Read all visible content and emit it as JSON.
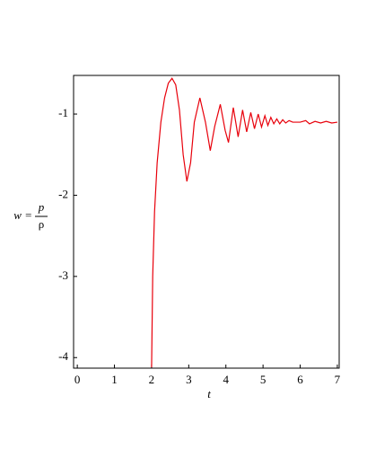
{
  "chart_data": {
    "type": "line",
    "x_label": "t",
    "y_label": {
      "lhs": "w =",
      "numerator": "p",
      "denominator": "ρ"
    },
    "x": [
      2.0,
      2.03,
      2.08,
      2.15,
      2.25,
      2.35,
      2.45,
      2.55,
      2.65,
      2.75,
      2.85,
      2.95,
      3.05,
      3.15,
      3.3,
      3.45,
      3.58,
      3.7,
      3.85,
      3.98,
      4.07,
      4.2,
      4.33,
      4.45,
      4.56,
      4.67,
      4.77,
      4.87,
      4.96,
      5.05,
      5.13,
      5.21,
      5.29,
      5.37,
      5.45,
      5.53,
      5.61,
      5.7,
      5.8,
      6.0,
      6.15,
      6.25,
      6.4,
      6.55,
      6.7,
      6.85,
      7.0
    ],
    "series": [
      {
        "color": "#e8000b",
        "values": [
          -4.12,
          -3.0,
          -2.2,
          -1.6,
          -1.1,
          -0.8,
          -0.62,
          -0.56,
          -0.64,
          -0.95,
          -1.5,
          -1.83,
          -1.6,
          -1.1,
          -0.8,
          -1.1,
          -1.45,
          -1.15,
          -0.88,
          -1.2,
          -1.35,
          -0.92,
          -1.28,
          -0.95,
          -1.22,
          -0.98,
          -1.18,
          -1.0,
          -1.16,
          -1.02,
          -1.14,
          -1.04,
          -1.12,
          -1.06,
          -1.12,
          -1.07,
          -1.11,
          -1.08,
          -1.1,
          -1.1,
          -1.08,
          -1.12,
          -1.09,
          -1.11,
          -1.09,
          -1.11,
          -1.1
        ]
      }
    ],
    "xlim": [
      -0.1,
      7.05
    ],
    "ylim": [
      -4.13,
      -0.524
    ],
    "xticks": [
      0,
      1,
      2,
      3,
      4,
      5,
      6,
      7
    ],
    "yticks": [
      -1,
      -2,
      -3,
      -4
    ]
  }
}
